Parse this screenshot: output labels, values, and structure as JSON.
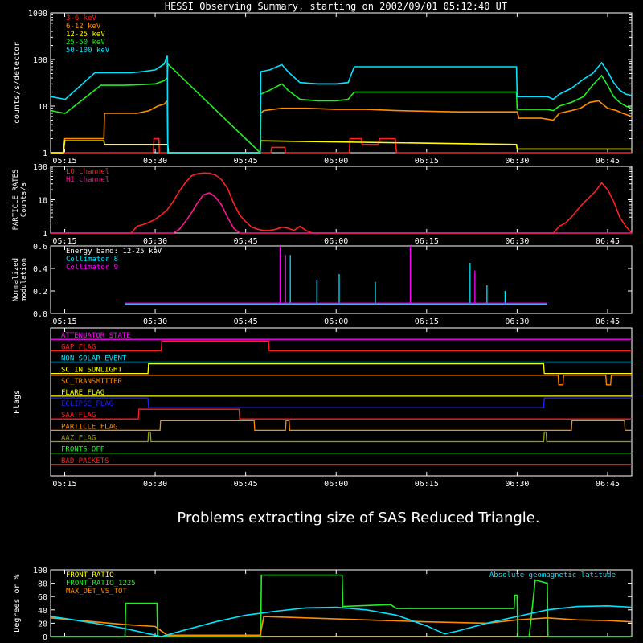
{
  "header": {
    "title": "HESSI Observing Summary, starting on 2002/09/01 05:12:40 UT"
  },
  "time_ticks": [
    "05:15",
    "05:30",
    "05:45",
    "06:00",
    "06:15",
    "06:30",
    "06:45"
  ],
  "time_tick_minutes": [
    15,
    30,
    45,
    60,
    75,
    90,
    105
  ],
  "time_range_minutes": [
    12.67,
    109.0
  ],
  "message": "Problems extracting size of SAS Reduced Triangle.",
  "colors": {
    "background": "#000000",
    "axis": "#ffffff",
    "red": "#ff2020",
    "orange": "#ff8c00",
    "yellow": "#ffff00",
    "green": "#22ee22",
    "cyan": "#00e5ff",
    "magenta": "#ff00ff",
    "blue": "#2020ff",
    "olive": "#9aa000"
  },
  "chart_data": [
    {
      "id": "count_rates",
      "type": "line",
      "ylabel": "counts/s/detector",
      "yscale": "log",
      "ylim": [
        1,
        1000
      ],
      "ytick_labels": [
        "1",
        "10",
        "100",
        "1000"
      ],
      "ytick_values": [
        1,
        10,
        100,
        1000
      ],
      "legend_placement": "top-left",
      "series": [
        {
          "name": "3-6 keV",
          "color": "#ff2020",
          "x": [
            12.7,
            29.7,
            29.8,
            30.6,
            30.7,
            47.4,
            47.5,
            49.2,
            49.3,
            51.5,
            51.6,
            62.2,
            62.3,
            64.2,
            64.3,
            67.0,
            67.2,
            69.8,
            70.0,
            109.0
          ],
          "y": [
            1,
            1,
            2,
            2,
            1,
            1,
            1,
            1,
            1.3,
            1.3,
            1,
            1,
            2,
            2,
            1.5,
            1.5,
            2,
            2,
            1,
            1
          ]
        },
        {
          "name": "6-12 keV",
          "color": "#ff8c00",
          "x": [
            12.7,
            14.8,
            15.0,
            21.5,
            21.6,
            27.0,
            29.0,
            30.4,
            31.5,
            32.0,
            32.1,
            47.4,
            47.5,
            48.0,
            51.0,
            55.0,
            60.0,
            65.0,
            70.0,
            80.0,
            90.0,
            90.3,
            94.0,
            96.0,
            97.0,
            99.0,
            100.5,
            102.0,
            103.5,
            105.0,
            106.5,
            107.5,
            109.0
          ],
          "y": [
            1,
            1,
            2,
            2,
            7,
            7,
            8,
            10,
            11,
            13,
            1,
            1,
            7,
            8,
            9,
            9,
            8.5,
            8.5,
            8,
            7.5,
            7.5,
            5.5,
            5.5,
            5,
            7,
            8,
            9,
            12,
            13,
            9,
            8,
            7,
            6
          ]
        },
        {
          "name": "12-25 keV",
          "color": "#ffff00",
          "x": [
            12.7,
            14.8,
            15.0,
            21.5,
            21.6,
            30.0,
            32.1,
            32.2,
            47.4,
            47.5,
            89.9,
            90.0,
            109.0
          ],
          "y": [
            1,
            1,
            1.8,
            1.8,
            1.5,
            1.5,
            1.5,
            1,
            1,
            1.8,
            1.5,
            1.2,
            1.2
          ]
        },
        {
          "name": "25-50 keV",
          "color": "#22ee22",
          "x": [
            12.7,
            15.0,
            15.1,
            21.0,
            25.0,
            28.0,
            30.0,
            31.5,
            32.0,
            32.1,
            47.4,
            47.5,
            49.0,
            51.0,
            52.0,
            54.0,
            57.0,
            60.0,
            62.0,
            63.0,
            70.0,
            80.0,
            89.9,
            90.0,
            95.0,
            96.0,
            97.0,
            99.0,
            101.0,
            102.5,
            104.0,
            105.0,
            106.0,
            107.0,
            108.0,
            109.0
          ],
          "y": [
            8,
            7,
            7,
            28,
            28,
            29,
            30,
            35,
            40,
            80,
            1,
            18,
            22,
            30,
            22,
            14,
            13,
            13,
            14,
            20,
            20,
            20,
            20,
            8.5,
            8.5,
            8,
            10,
            12,
            16,
            28,
            45,
            28,
            16,
            12,
            10,
            9
          ]
        },
        {
          "name": "50-100 keV",
          "color": "#00e5ff",
          "x": [
            12.7,
            15.0,
            15.1,
            20.0,
            26.0,
            28.0,
            30.0,
            31.5,
            32.0,
            32.1,
            47.4,
            47.5,
            49.0,
            51.0,
            52.0,
            54.0,
            57.0,
            60.0,
            62.0,
            63.0,
            70.0,
            80.0,
            89.9,
            90.0,
            95.0,
            96.0,
            97.0,
            99.0,
            101.0,
            102.5,
            104.0,
            105.0,
            106.0,
            107.0,
            108.0,
            109.0
          ],
          "y": [
            16,
            14,
            14,
            52,
            52,
            55,
            60,
            80,
            120,
            1,
            1,
            55,
            60,
            78,
            55,
            32,
            30,
            30,
            32,
            70,
            70,
            70,
            70,
            16,
            16,
            14,
            18,
            24,
            38,
            50,
            85,
            55,
            32,
            22,
            18,
            17
          ]
        }
      ]
    },
    {
      "id": "particle_rates",
      "type": "line",
      "ylabel": "PARTICLE RATES Counts/s",
      "yscale": "log",
      "ylim": [
        1,
        100
      ],
      "ytick_labels": [
        "1",
        "10",
        "100"
      ],
      "ytick_values": [
        1,
        10,
        100
      ],
      "legend_placement": "top-left",
      "series": [
        {
          "name": "LO channel",
          "color": "#ff2020",
          "x": [
            12.7,
            26.0,
            27.0,
            28.0,
            29.0,
            30.0,
            31.0,
            32.0,
            33.0,
            34.0,
            35.0,
            36.0,
            37.0,
            38.0,
            39.0,
            40.0,
            41.0,
            42.0,
            43.0,
            44.0,
            45.0,
            46.0,
            47.0,
            48.0,
            49.0,
            50.0,
            51.0,
            52.0,
            53.0,
            54.0,
            55.0,
            56.0,
            96.0,
            97.0,
            98.0,
            99.0,
            100.0,
            101.0,
            102.0,
            103.0,
            104.0,
            105.0,
            106.0,
            107.0,
            108.0,
            109.0
          ],
          "y": [
            1,
            1,
            1.6,
            1.8,
            2.1,
            2.6,
            3.5,
            5,
            9,
            18,
            32,
            52,
            60,
            63,
            62,
            55,
            40,
            22,
            8,
            3.5,
            2.2,
            1.5,
            1.3,
            1.2,
            1.2,
            1.3,
            1.5,
            1.4,
            1.2,
            1.6,
            1.2,
            1,
            1,
            1.6,
            2,
            3,
            5,
            8,
            12,
            18,
            32,
            20,
            9,
            3,
            1.6,
            1
          ]
        },
        {
          "name": "HI channel",
          "color": "#ff1493",
          "x": [
            12.7,
            33.0,
            34.0,
            35.0,
            36.0,
            37.0,
            38.0,
            39.0,
            40.0,
            41.0,
            42.0,
            43.0,
            44.0,
            109.0
          ],
          "y": [
            1,
            1,
            1.3,
            2.2,
            4,
            8,
            14,
            16,
            12,
            7,
            3,
            1.4,
            1,
            1
          ]
        }
      ]
    },
    {
      "id": "modulation",
      "type": "line",
      "ylabel": "Normalized modulation",
      "ylim": [
        0,
        0.6
      ],
      "ytick_labels": [
        "0.0",
        "0.2",
        "0.4",
        "0.6"
      ],
      "ytick_values": [
        0,
        0.2,
        0.4,
        0.6
      ],
      "legend_placement": "top-left",
      "legend_heading": "Energy band: 12-25 keV",
      "series": [
        {
          "name": "Collimator 8",
          "color": "#00e5ff",
          "x": [
            25.0,
            30.2,
            47.5,
            95.0
          ],
          "y": [
            0.08,
            0.08,
            0.08,
            0.08
          ],
          "spikes_x": [
            52.4,
            56.8,
            60.5,
            66.5,
            82.2,
            85.0,
            88.0
          ],
          "spikes_y": [
            0.52,
            0.3,
            0.35,
            0.28,
            0.45,
            0.25,
            0.2
          ]
        },
        {
          "name": "Collimator 9",
          "color": "#ff00ff",
          "x": [
            25.0,
            30.2,
            47.5,
            95.0
          ],
          "y": [
            0.09,
            0.09,
            0.09,
            0.09
          ],
          "spikes_x": [
            50.7,
            51.6,
            72.3,
            83.0
          ],
          "spikes_y": [
            0.6,
            0.52,
            0.6,
            0.38
          ]
        }
      ]
    },
    {
      "id": "flags",
      "type": "line",
      "ylabel": "Flags",
      "series": [
        {
          "name": "ATTENUATOR_STATE",
          "color": "#ff00ff",
          "x": [
            12.7,
            109.0
          ],
          "y": [
            0,
            0
          ]
        },
        {
          "name": "GAP_FLAG",
          "color": "#ff2020",
          "x": [
            12.7,
            31.0,
            31.1,
            48.8,
            48.9,
            109.0
          ],
          "y": [
            0,
            0,
            1,
            1,
            0,
            0
          ]
        },
        {
          "name": "NON_SOLAR_EVENT",
          "color": "#00e5ff",
          "x": [
            12.7,
            109.0
          ],
          "y": [
            0,
            0
          ]
        },
        {
          "name": "SC_IN_SUNLIGHT",
          "color": "#ffff00",
          "x": [
            12.7,
            28.8,
            28.9,
            94.4,
            94.5,
            109.0
          ],
          "y": [
            0,
            0,
            1,
            1,
            0,
            0
          ]
        },
        {
          "name": "SC_TRANSMITTER",
          "color": "#ff8c00",
          "x": [
            12.7,
            96.8,
            96.9,
            97.6,
            97.7,
            104.7,
            104.8,
            105.5,
            105.6,
            109.0
          ],
          "y": [
            1,
            1,
            0,
            0,
            1,
            1,
            0,
            0,
            1,
            1
          ]
        },
        {
          "name": "FLARE_FLAG",
          "color": "#ffff00",
          "x": [
            12.7,
            109.0
          ],
          "y": [
            0,
            0
          ]
        },
        {
          "name": "ECLIPSE_FLAG",
          "color": "#2020ff",
          "x": [
            12.7,
            28.8,
            28.9,
            94.4,
            94.5,
            109.0
          ],
          "y": [
            1,
            1,
            0,
            0,
            1,
            1
          ]
        },
        {
          "name": "SAA_FLAG",
          "color": "#ff2020",
          "x": [
            12.7,
            27.2,
            27.3,
            43.9,
            44.0,
            109.0
          ],
          "y": [
            0,
            0,
            1,
            1,
            0,
            0
          ]
        },
        {
          "name": "PARTICLE_FLAG",
          "color": "#ff8c00",
          "x": [
            12.7,
            30.8,
            30.9,
            46.4,
            46.5,
            51.6,
            51.7,
            52.2,
            52.3,
            99.0,
            99.1,
            107.8,
            107.9,
            109.0
          ],
          "y": [
            0,
            0,
            1,
            1,
            0,
            0,
            1,
            1,
            0,
            0,
            1,
            1,
            0,
            0
          ]
        },
        {
          "name": "AAZ_FLAG",
          "color": "#9aa000",
          "x": [
            12.7,
            28.8,
            28.9,
            29.2,
            29.3,
            94.4,
            94.5,
            94.8,
            94.9,
            109.0
          ],
          "y": [
            0,
            0,
            1,
            1,
            0,
            0,
            1,
            1,
            0,
            0
          ]
        },
        {
          "name": "FRONTS_OFF",
          "color": "#22ee22",
          "x": [
            12.7,
            109.0
          ],
          "y": [
            0,
            0
          ]
        },
        {
          "name": "BAD_PACKETS",
          "color": "#ff2020",
          "x": [
            12.7,
            109.0
          ],
          "y": [
            0,
            0
          ]
        }
      ]
    },
    {
      "id": "ratios",
      "type": "line",
      "ylabel": "Degrees or %",
      "ylim": [
        0,
        100
      ],
      "ytick_labels": [
        "0",
        "20",
        "40",
        "60",
        "80",
        "100"
      ],
      "ytick_values": [
        0,
        20,
        40,
        60,
        80,
        100
      ],
      "legend_placement": "top-left",
      "right_label": "Absolute geomagnetic latitude",
      "series": [
        {
          "name": "FRONT_RATIO",
          "color": "#ffff00",
          "x": [
            12.7,
            109.0
          ],
          "y": [
            0,
            0
          ]
        },
        {
          "name": "FRONT_RATIO_1225",
          "color": "#22ee22",
          "x": [
            12.7,
            25.0,
            25.1,
            30.3,
            30.4,
            47.5,
            47.6,
            61.0,
            61.1,
            69.0,
            70.0,
            89.5,
            89.6,
            90.0,
            90.1,
            92.0,
            93.0,
            95.0,
            95.1,
            109.0
          ],
          "y": [
            0,
            0,
            50,
            50,
            0,
            0,
            92,
            92,
            45,
            48,
            42,
            42,
            62,
            62,
            0,
            0,
            85,
            80,
            0,
            0
          ]
        },
        {
          "name": "MAX_DET_VS_TOT",
          "color": "#ff8c00",
          "x": [
            12.7,
            20.0,
            25.0,
            30.0,
            32.0,
            47.4,
            48.0,
            55.0,
            65.0,
            75.0,
            85.0,
            90.0,
            95.0,
            100.0,
            105.0,
            109.0
          ],
          "y": [
            28,
            22,
            18,
            15,
            2,
            2,
            30,
            28,
            25,
            22,
            20,
            25,
            28,
            25,
            24,
            22
          ]
        },
        {
          "name": "Absolute geomagnetic latitude",
          "color": "#00e5ff",
          "x": [
            12.7,
            15.0,
            20.0,
            25.0,
            29.0,
            31.0,
            35.0,
            40.0,
            45.0,
            50.0,
            55.0,
            60.0,
            65.0,
            70.0,
            75.0,
            78.0,
            80.0,
            85.0,
            90.0,
            95.0,
            100.0,
            105.0,
            109.0
          ],
          "y": [
            30,
            27,
            20,
            12,
            4,
            0,
            10,
            22,
            32,
            38,
            43,
            44,
            40,
            32,
            16,
            4,
            8,
            20,
            30,
            40,
            45,
            46,
            44
          ]
        }
      ]
    }
  ]
}
